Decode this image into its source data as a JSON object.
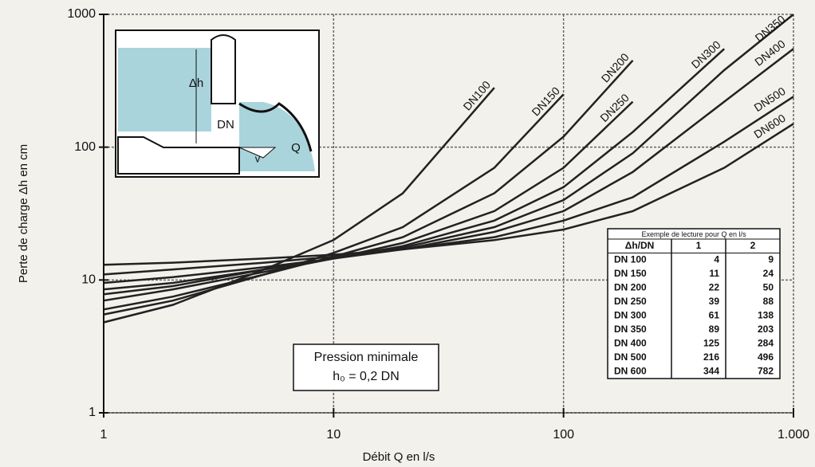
{
  "chart_data": {
    "type": "line",
    "x_label": "Débit Q en l/s",
    "y_label": "Perte de charge Δh en cm",
    "log_x": true,
    "log_y": true,
    "grid": true,
    "xlim": [
      1,
      1000
    ],
    "ylim": [
      1,
      1000
    ],
    "xticks": [
      1,
      10,
      100,
      {
        "value": 1000,
        "label": "1.000"
      }
    ],
    "yticks": [
      1,
      10,
      100,
      1000
    ],
    "x": [
      1,
      2,
      5,
      10,
      20,
      50,
      100,
      200,
      500,
      1000
    ],
    "series": [
      {
        "name": "DN100",
        "color": "#222222",
        "values": [
          4.8,
          6.5,
          12,
          20,
          45,
          280,
          null,
          null,
          null,
          null
        ]
      },
      {
        "name": "DN150",
        "color": "#222222",
        "values": [
          5.5,
          7,
          11,
          16,
          25,
          70,
          250,
          null,
          null,
          null
        ]
      },
      {
        "name": "DN200",
        "color": "#222222",
        "values": [
          6,
          7.5,
          11,
          15,
          21,
          45,
          120,
          450,
          null,
          null
        ]
      },
      {
        "name": "DN250",
        "color": "#222222",
        "values": [
          7,
          8.5,
          11.5,
          14.5,
          19,
          33,
          70,
          220,
          null,
          null
        ]
      },
      {
        "name": "DN300",
        "color": "#222222",
        "values": [
          7.8,
          9,
          12,
          14.5,
          18,
          28,
          50,
          130,
          550,
          null
        ]
      },
      {
        "name": "DN350",
        "color": "#222222",
        "values": [
          8.5,
          9.5,
          12,
          14.5,
          17.5,
          25,
          40,
          90,
          380,
          1000
        ]
      },
      {
        "name": "DN400",
        "color": "#222222",
        "values": [
          9.5,
          10.5,
          12.5,
          14.5,
          17,
          23,
          33,
          65,
          220,
          550
        ]
      },
      {
        "name": "DN500",
        "color": "#222222",
        "values": [
          11,
          12,
          13.5,
          15,
          17,
          21,
          28,
          42,
          110,
          240
        ]
      },
      {
        "name": "DN600",
        "color": "#222222",
        "values": [
          13,
          13.5,
          14.5,
          15.5,
          17,
          20,
          24,
          33,
          70,
          150
        ]
      }
    ],
    "annotation": [
      "Pression minimale",
      "h₀ = 0,2 DN"
    ],
    "diagram_labels": [
      "Δh",
      "DN",
      "Q",
      "v"
    ],
    "table": {
      "title": "Exemple de lecture pour Q en l/s",
      "header": [
        "Δh/DN",
        "1",
        "2"
      ],
      "rows": [
        [
          "DN 100",
          4,
          9
        ],
        [
          "DN 150",
          11,
          24
        ],
        [
          "DN 200",
          22,
          50
        ],
        [
          "DN 250",
          39,
          88
        ],
        [
          "DN 300",
          61,
          138
        ],
        [
          "DN 350",
          89,
          203
        ],
        [
          "DN 400",
          125,
          284
        ],
        [
          "DN 500",
          216,
          496
        ],
        [
          "DN 600",
          344,
          782
        ]
      ]
    }
  }
}
